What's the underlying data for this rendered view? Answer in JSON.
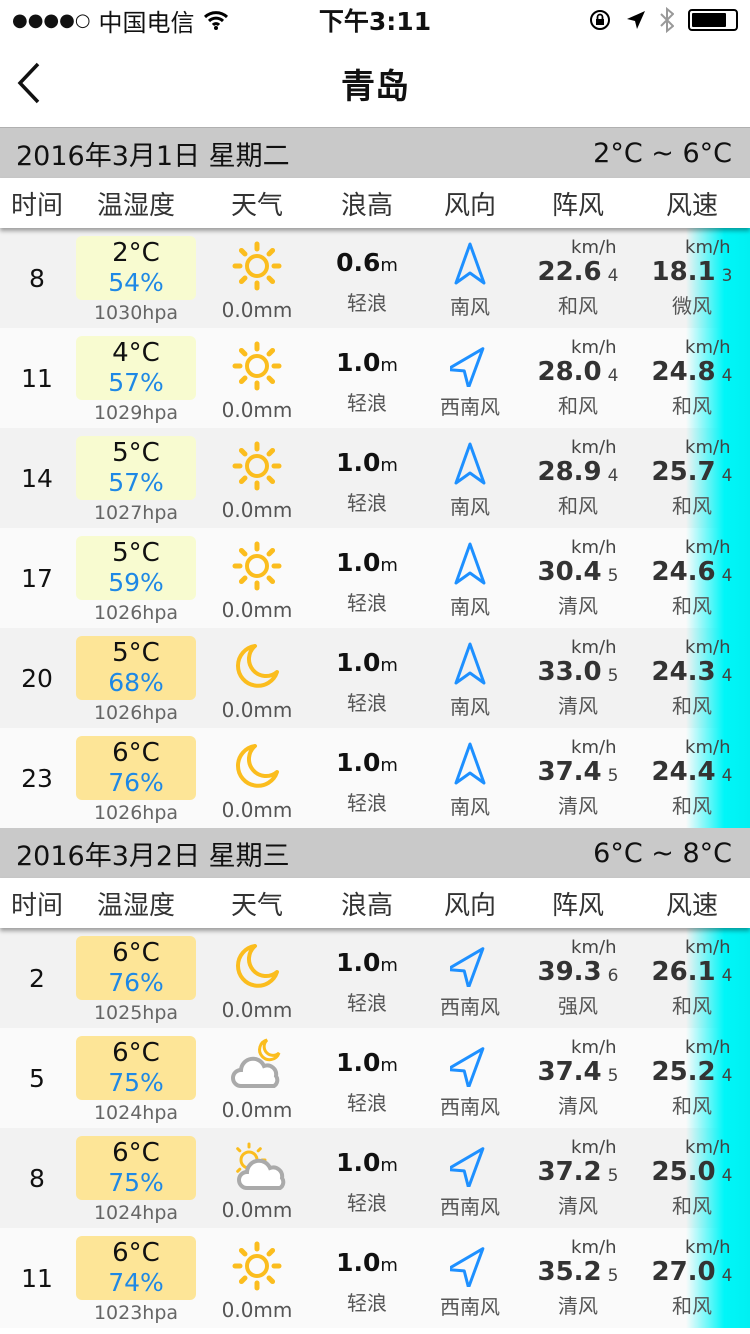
{
  "status_bar": {
    "signal": "●●●●○",
    "carrier": "中国电信",
    "time": "下午3:11"
  },
  "nav": {
    "title": "青岛"
  },
  "columns": [
    "时间",
    "温湿度",
    "天气",
    "浪高",
    "风向",
    "阵风",
    "风速"
  ],
  "units": {
    "wave": "m",
    "wind": "km/h"
  },
  "colors": {
    "cool_box": "#f8fbd0",
    "warm_box": "#fde597",
    "humidity": "#1e88e5",
    "accent_cyan": "#00f6f8",
    "icon_yellow": "#fbbd1e",
    "arrow_blue": "#1e90ff"
  },
  "days": [
    {
      "date": "2016年3月1日 星期二",
      "range": "2°C ~ 6°C",
      "rows": [
        {
          "hour": "8",
          "temp": "2°C",
          "hum": "54%",
          "hpa": "1030hpa",
          "icon": "sun-icon",
          "rain": "0.0mm",
          "wave": "0.6",
          "wave_desc": "轻浪",
          "dir": "南风",
          "gust": "22.6",
          "gust_lvl": "4",
          "gust_desc": "和风",
          "speed": "18.1",
          "speed_lvl": "3",
          "speed_desc": "微风",
          "box": "cool"
        },
        {
          "hour": "11",
          "temp": "4°C",
          "hum": "57%",
          "hpa": "1029hpa",
          "icon": "sun-icon",
          "rain": "0.0mm",
          "wave": "1.0",
          "wave_desc": "轻浪",
          "dir": "西南风",
          "gust": "28.0",
          "gust_lvl": "4",
          "gust_desc": "和风",
          "speed": "24.8",
          "speed_lvl": "4",
          "speed_desc": "和风",
          "box": "cool"
        },
        {
          "hour": "14",
          "temp": "5°C",
          "hum": "57%",
          "hpa": "1027hpa",
          "icon": "sun-icon",
          "rain": "0.0mm",
          "wave": "1.0",
          "wave_desc": "轻浪",
          "dir": "南风",
          "gust": "28.9",
          "gust_lvl": "4",
          "gust_desc": "和风",
          "speed": "25.7",
          "speed_lvl": "4",
          "speed_desc": "和风",
          "box": "cool"
        },
        {
          "hour": "17",
          "temp": "5°C",
          "hum": "59%",
          "hpa": "1026hpa",
          "icon": "sun-icon",
          "rain": "0.0mm",
          "wave": "1.0",
          "wave_desc": "轻浪",
          "dir": "南风",
          "gust": "30.4",
          "gust_lvl": "5",
          "gust_desc": "清风",
          "speed": "24.6",
          "speed_lvl": "4",
          "speed_desc": "和风",
          "box": "cool"
        },
        {
          "hour": "20",
          "temp": "5°C",
          "hum": "68%",
          "hpa": "1026hpa",
          "icon": "moon-icon",
          "rain": "0.0mm",
          "wave": "1.0",
          "wave_desc": "轻浪",
          "dir": "南风",
          "gust": "33.0",
          "gust_lvl": "5",
          "gust_desc": "清风",
          "speed": "24.3",
          "speed_lvl": "4",
          "speed_desc": "和风",
          "box": "warm"
        },
        {
          "hour": "23",
          "temp": "6°C",
          "hum": "76%",
          "hpa": "1026hpa",
          "icon": "moon-icon",
          "rain": "0.0mm",
          "wave": "1.0",
          "wave_desc": "轻浪",
          "dir": "南风",
          "gust": "37.4",
          "gust_lvl": "5",
          "gust_desc": "清风",
          "speed": "24.4",
          "speed_lvl": "4",
          "speed_desc": "和风",
          "box": "warm"
        }
      ]
    },
    {
      "date": "2016年3月2日 星期三",
      "range": "6°C ~ 8°C",
      "rows": [
        {
          "hour": "2",
          "temp": "6°C",
          "hum": "76%",
          "hpa": "1025hpa",
          "icon": "moon-icon",
          "rain": "0.0mm",
          "wave": "1.0",
          "wave_desc": "轻浪",
          "dir": "西南风",
          "gust": "39.3",
          "gust_lvl": "6",
          "gust_desc": "强风",
          "speed": "26.1",
          "speed_lvl": "4",
          "speed_desc": "和风",
          "box": "warm"
        },
        {
          "hour": "5",
          "temp": "6°C",
          "hum": "75%",
          "hpa": "1024hpa",
          "icon": "cloudy-night-icon",
          "rain": "0.0mm",
          "wave": "1.0",
          "wave_desc": "轻浪",
          "dir": "西南风",
          "gust": "37.4",
          "gust_lvl": "5",
          "gust_desc": "清风",
          "speed": "25.2",
          "speed_lvl": "4",
          "speed_desc": "和风",
          "box": "warm"
        },
        {
          "hour": "8",
          "temp": "6°C",
          "hum": "75%",
          "hpa": "1024hpa",
          "icon": "partly-cloudy-icon",
          "rain": "0.0mm",
          "wave": "1.0",
          "wave_desc": "轻浪",
          "dir": "西南风",
          "gust": "37.2",
          "gust_lvl": "5",
          "gust_desc": "清风",
          "speed": "25.0",
          "speed_lvl": "4",
          "speed_desc": "和风",
          "box": "warm"
        },
        {
          "hour": "11",
          "temp": "6°C",
          "hum": "74%",
          "hpa": "1023hpa",
          "icon": "sun-icon",
          "rain": "0.0mm",
          "wave": "1.0",
          "wave_desc": "轻浪",
          "dir": "西南风",
          "gust": "35.2",
          "gust_lvl": "5",
          "gust_desc": "清风",
          "speed": "27.0",
          "speed_lvl": "4",
          "speed_desc": "和风",
          "box": "warm"
        }
      ]
    }
  ]
}
